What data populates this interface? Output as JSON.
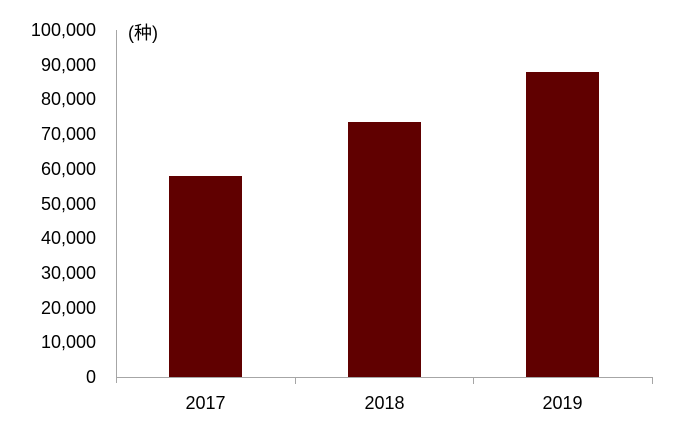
{
  "chart_data": {
    "type": "bar",
    "title": "",
    "unit_label": "(种)",
    "categories": [
      "2017",
      "2018",
      "2019"
    ],
    "values": [
      58000,
      73500,
      88000
    ],
    "xlabel": "",
    "ylabel": "",
    "ylim": [
      0,
      100000
    ],
    "ytick_step": 10000,
    "ytick_format": "comma",
    "grid": false,
    "legend_position": "none",
    "colors": {
      "bar": "#600000",
      "axis": "#a6a6a6",
      "text": "#000000",
      "background": "#ffffff"
    }
  }
}
